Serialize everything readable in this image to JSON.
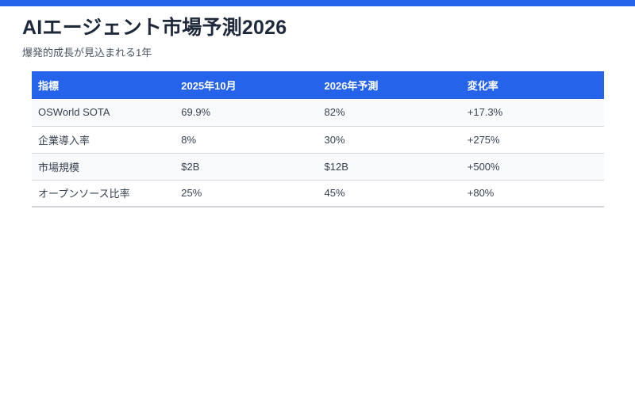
{
  "page": {
    "title": "AIエージェント市場予測2026",
    "subtitle": "爆発的成長が見込まれる1年"
  },
  "table": {
    "columns": [
      "指標",
      "2025年10月",
      "2026年予測",
      "変化率"
    ],
    "rows": [
      [
        "OSWorld SOTA",
        "69.9%",
        "82%",
        "+17.3%"
      ],
      [
        "企業導入率",
        "8%",
        "30%",
        "+275%"
      ],
      [
        "市場規模",
        "$2B",
        "$12B",
        "+500%"
      ],
      [
        "オープンソース比率",
        "25%",
        "45%",
        "+80%"
      ]
    ]
  },
  "colors": {
    "accent": "#2563eb",
    "title": "#1e293b",
    "subtitle": "#4b5563",
    "cell-text": "#374151",
    "row-alt": "#f9fafb",
    "row-border": "#d6d8dc",
    "bottom-border": "#d1d3d8"
  }
}
